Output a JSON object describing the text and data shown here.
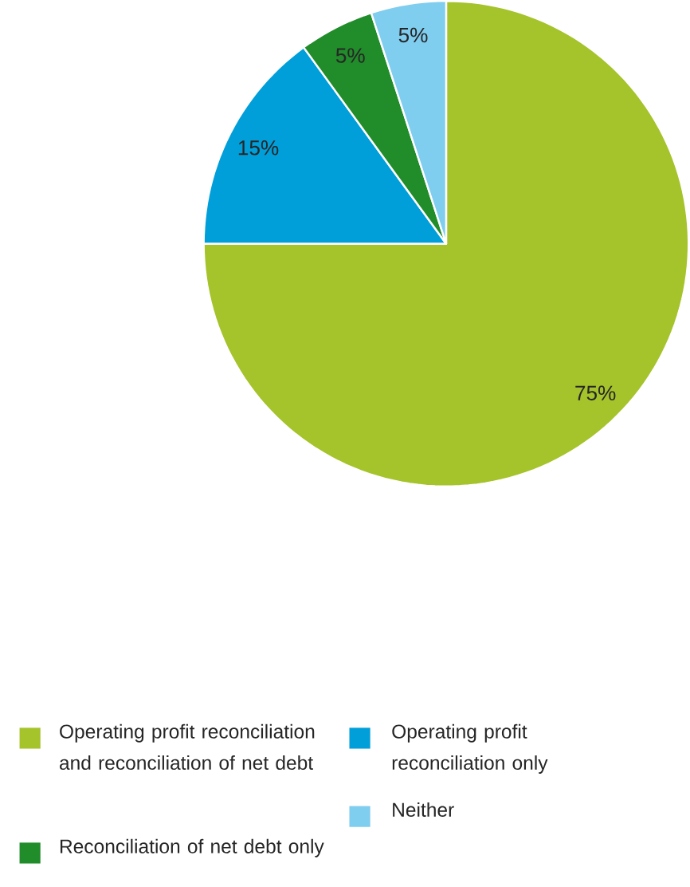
{
  "chart_data": {
    "type": "pie",
    "categories": [
      "Operating profit reconciliation and reconciliation of net debt",
      "Operating profit reconciliation only",
      "Reconciliation of net debt only",
      "Neither"
    ],
    "values": [
      75,
      15,
      5,
      5
    ],
    "colors": [
      "#a5c32a",
      "#009fda",
      "#218c2a",
      "#7fcdef"
    ],
    "value_labels": [
      "75%",
      "15%",
      "5%",
      "5%"
    ],
    "legend": "bottom"
  }
}
